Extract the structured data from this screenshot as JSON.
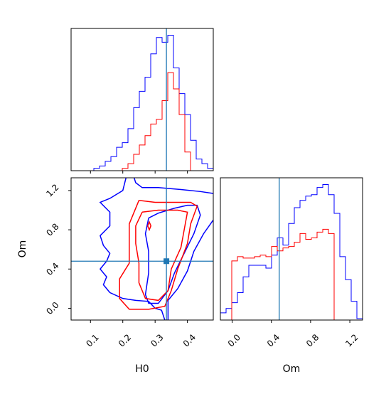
{
  "colors": {
    "sample_a": "#0000ff",
    "sample_b": "#ff0000",
    "truth": "#1f77b4"
  },
  "chart_data": [
    {
      "type": "histogram",
      "panel": "H0 marginal",
      "x_range": [
        0.04,
        0.48
      ],
      "x_ticks": [
        0.1,
        0.2,
        0.3,
        0.4
      ],
      "x_tick_labels": [
        "0.1",
        "0.2",
        "0.3",
        "0.4"
      ],
      "y_tick_labels": [],
      "truth_x": 0.335,
      "bin_edges": [
        0.04,
        0.0576,
        0.0752,
        0.0928,
        0.1104,
        0.128,
        0.1456,
        0.1632,
        0.1808,
        0.1984,
        0.216,
        0.2336,
        0.2512,
        0.2688,
        0.2864,
        0.304,
        0.3216,
        0.3392,
        0.3568,
        0.3744,
        0.392,
        0.4096,
        0.4272,
        0.4448,
        0.4624,
        0.48
      ],
      "series": [
        {
          "color_key": "sample_a",
          "values": [
            0,
            0,
            0,
            0,
            1,
            2,
            4,
            6,
            10,
            12,
            18,
            27,
            34,
            40,
            50,
            57,
            55,
            58,
            44,
            33,
            24,
            13,
            5,
            3,
            1
          ]
        },
        {
          "color_key": "sample_b",
          "values": [
            0,
            0,
            0,
            0,
            0,
            0,
            0,
            0,
            0,
            1,
            3,
            7,
            11,
            15,
            20,
            22,
            30,
            42,
            35,
            24,
            8,
            0,
            0,
            0,
            0
          ]
        }
      ]
    },
    {
      "type": "contour",
      "panel": "H0 vs Om",
      "xlabel": "H0",
      "ylabel": "Om",
      "x_range": [
        0.04,
        0.48
      ],
      "y_range": [
        -0.12,
        1.33
      ],
      "x_ticks": [
        0.1,
        0.2,
        0.3,
        0.4
      ],
      "x_tick_labels": [
        "0.1",
        "0.2",
        "0.3",
        "0.4"
      ],
      "y_ticks": [
        0.0,
        0.4,
        0.8,
        1.2
      ],
      "y_tick_labels": [
        "0.0",
        "0.4",
        "0.8",
        "1.2"
      ],
      "truth": [
        0.335,
        0.48
      ],
      "series": [
        {
          "color_key": "sample_a",
          "level": "outer",
          "points": [
            [
              0.21,
              1.33
            ],
            [
              0.2,
              1.2
            ],
            [
              0.16,
              1.12
            ],
            [
              0.13,
              1.08
            ],
            [
              0.16,
              0.98
            ],
            [
              0.16,
              0.84
            ],
            [
              0.13,
              0.74
            ],
            [
              0.14,
              0.64
            ],
            [
              0.16,
              0.56
            ],
            [
              0.15,
              0.48
            ],
            [
              0.13,
              0.4
            ],
            [
              0.15,
              0.32
            ],
            [
              0.14,
              0.24
            ],
            [
              0.16,
              0.16
            ],
            [
              0.2,
              0.1
            ],
            [
              0.24,
              0.08
            ],
            [
              0.28,
              0.07
            ],
            [
              0.3,
              0.0
            ],
            [
              0.32,
              -0.02
            ],
            [
              0.33,
              -0.12
            ]
          ]
        },
        {
          "color_key": "sample_a",
          "level": "outer",
          "points": [
            [
              0.34,
              -0.12
            ],
            [
              0.34,
              0.08
            ],
            [
              0.37,
              0.2
            ],
            [
              0.4,
              0.38
            ],
            [
              0.42,
              0.58
            ],
            [
              0.45,
              0.76
            ],
            [
              0.48,
              0.9
            ]
          ]
        },
        {
          "color_key": "sample_a",
          "level": "outer",
          "points": [
            [
              0.48,
              1.17
            ],
            [
              0.44,
              1.19
            ],
            [
              0.38,
              1.21
            ],
            [
              0.31,
              1.23
            ],
            [
              0.26,
              1.23
            ],
            [
              0.24,
              1.28
            ],
            [
              0.235,
              1.33
            ]
          ]
        },
        {
          "color_key": "sample_a",
          "level": "inner",
          "points": [
            [
              0.28,
              0.92
            ],
            [
              0.31,
              0.97
            ],
            [
              0.36,
              1.02
            ],
            [
              0.4,
              1.05
            ],
            [
              0.43,
              1.05
            ],
            [
              0.44,
              0.95
            ],
            [
              0.42,
              0.76
            ],
            [
              0.39,
              0.56
            ],
            [
              0.36,
              0.36
            ],
            [
              0.34,
              0.18
            ],
            [
              0.31,
              0.05
            ],
            [
              0.28,
              0.05
            ],
            [
              0.27,
              0.14
            ],
            [
              0.28,
              0.36
            ],
            [
              0.28,
              0.58
            ],
            [
              0.27,
              0.76
            ],
            [
              0.28,
              0.92
            ]
          ]
        },
        {
          "color_key": "sample_b",
          "level": "outer",
          "points": [
            [
              0.25,
              1.1
            ],
            [
              0.3,
              1.08
            ],
            [
              0.36,
              1.08
            ],
            [
              0.41,
              1.08
            ],
            [
              0.43,
              1.04
            ],
            [
              0.41,
              0.86
            ],
            [
              0.4,
              0.66
            ],
            [
              0.37,
              0.4
            ],
            [
              0.35,
              0.18
            ],
            [
              0.33,
              0.02
            ],
            [
              0.28,
              -0.01
            ],
            [
              0.22,
              -0.01
            ],
            [
              0.19,
              0.1
            ],
            [
              0.19,
              0.3
            ],
            [
              0.22,
              0.46
            ],
            [
              0.22,
              0.66
            ],
            [
              0.22,
              0.86
            ],
            [
              0.25,
              1.1
            ]
          ]
        },
        {
          "color_key": "sample_b",
          "level": "inner",
          "points": [
            [
              0.26,
              0.98
            ],
            [
              0.31,
              1.0
            ],
            [
              0.37,
              1.0
            ],
            [
              0.4,
              0.98
            ],
            [
              0.39,
              0.8
            ],
            [
              0.38,
              0.62
            ],
            [
              0.35,
              0.4
            ],
            [
              0.34,
              0.18
            ],
            [
              0.31,
              0.08
            ],
            [
              0.27,
              0.1
            ],
            [
              0.25,
              0.26
            ],
            [
              0.25,
              0.46
            ],
            [
              0.24,
              0.66
            ],
            [
              0.24,
              0.84
            ],
            [
              0.26,
              0.98
            ]
          ]
        },
        {
          "color_key": "sample_b",
          "level": "island",
          "points": [
            [
              0.277,
              0.84
            ],
            [
              0.282,
              0.88
            ],
            [
              0.287,
              0.84
            ],
            [
              0.282,
              0.8
            ],
            [
              0.277,
              0.84
            ]
          ]
        }
      ]
    },
    {
      "type": "histogram",
      "panel": "Om marginal",
      "xlabel": "Om",
      "x_range": [
        -0.12,
        1.33
      ],
      "x_ticks": [
        0.0,
        0.4,
        0.8,
        1.2
      ],
      "x_tick_labels": [
        "0.0",
        "0.4",
        "0.8",
        "1.2"
      ],
      "y_tick_labels": [],
      "truth_x": 0.48,
      "bin_edges": [
        -0.12,
        -0.062,
        -0.004,
        0.054,
        0.112,
        0.17,
        0.228,
        0.286,
        0.344,
        0.402,
        0.46,
        0.518,
        0.576,
        0.634,
        0.692,
        0.75,
        0.808,
        0.866,
        0.924,
        0.982,
        1.04,
        1.098,
        1.156,
        1.214,
        1.272,
        1.33
      ],
      "series": [
        {
          "color_key": "sample_a",
          "values": [
            5,
            8,
            12,
            19,
            30,
            38,
            38,
            38,
            36,
            45,
            57,
            52,
            67,
            78,
            83,
            86,
            87,
            92,
            94,
            87,
            74,
            44,
            28,
            13,
            1
          ]
        },
        {
          "color_key": "sample_b",
          "values": [
            0,
            0,
            41,
            44,
            43,
            43,
            44,
            45,
            44,
            51,
            48,
            50,
            51,
            54,
            60,
            56,
            57,
            61,
            63,
            60,
            0,
            0,
            0,
            0,
            0
          ]
        }
      ]
    }
  ]
}
